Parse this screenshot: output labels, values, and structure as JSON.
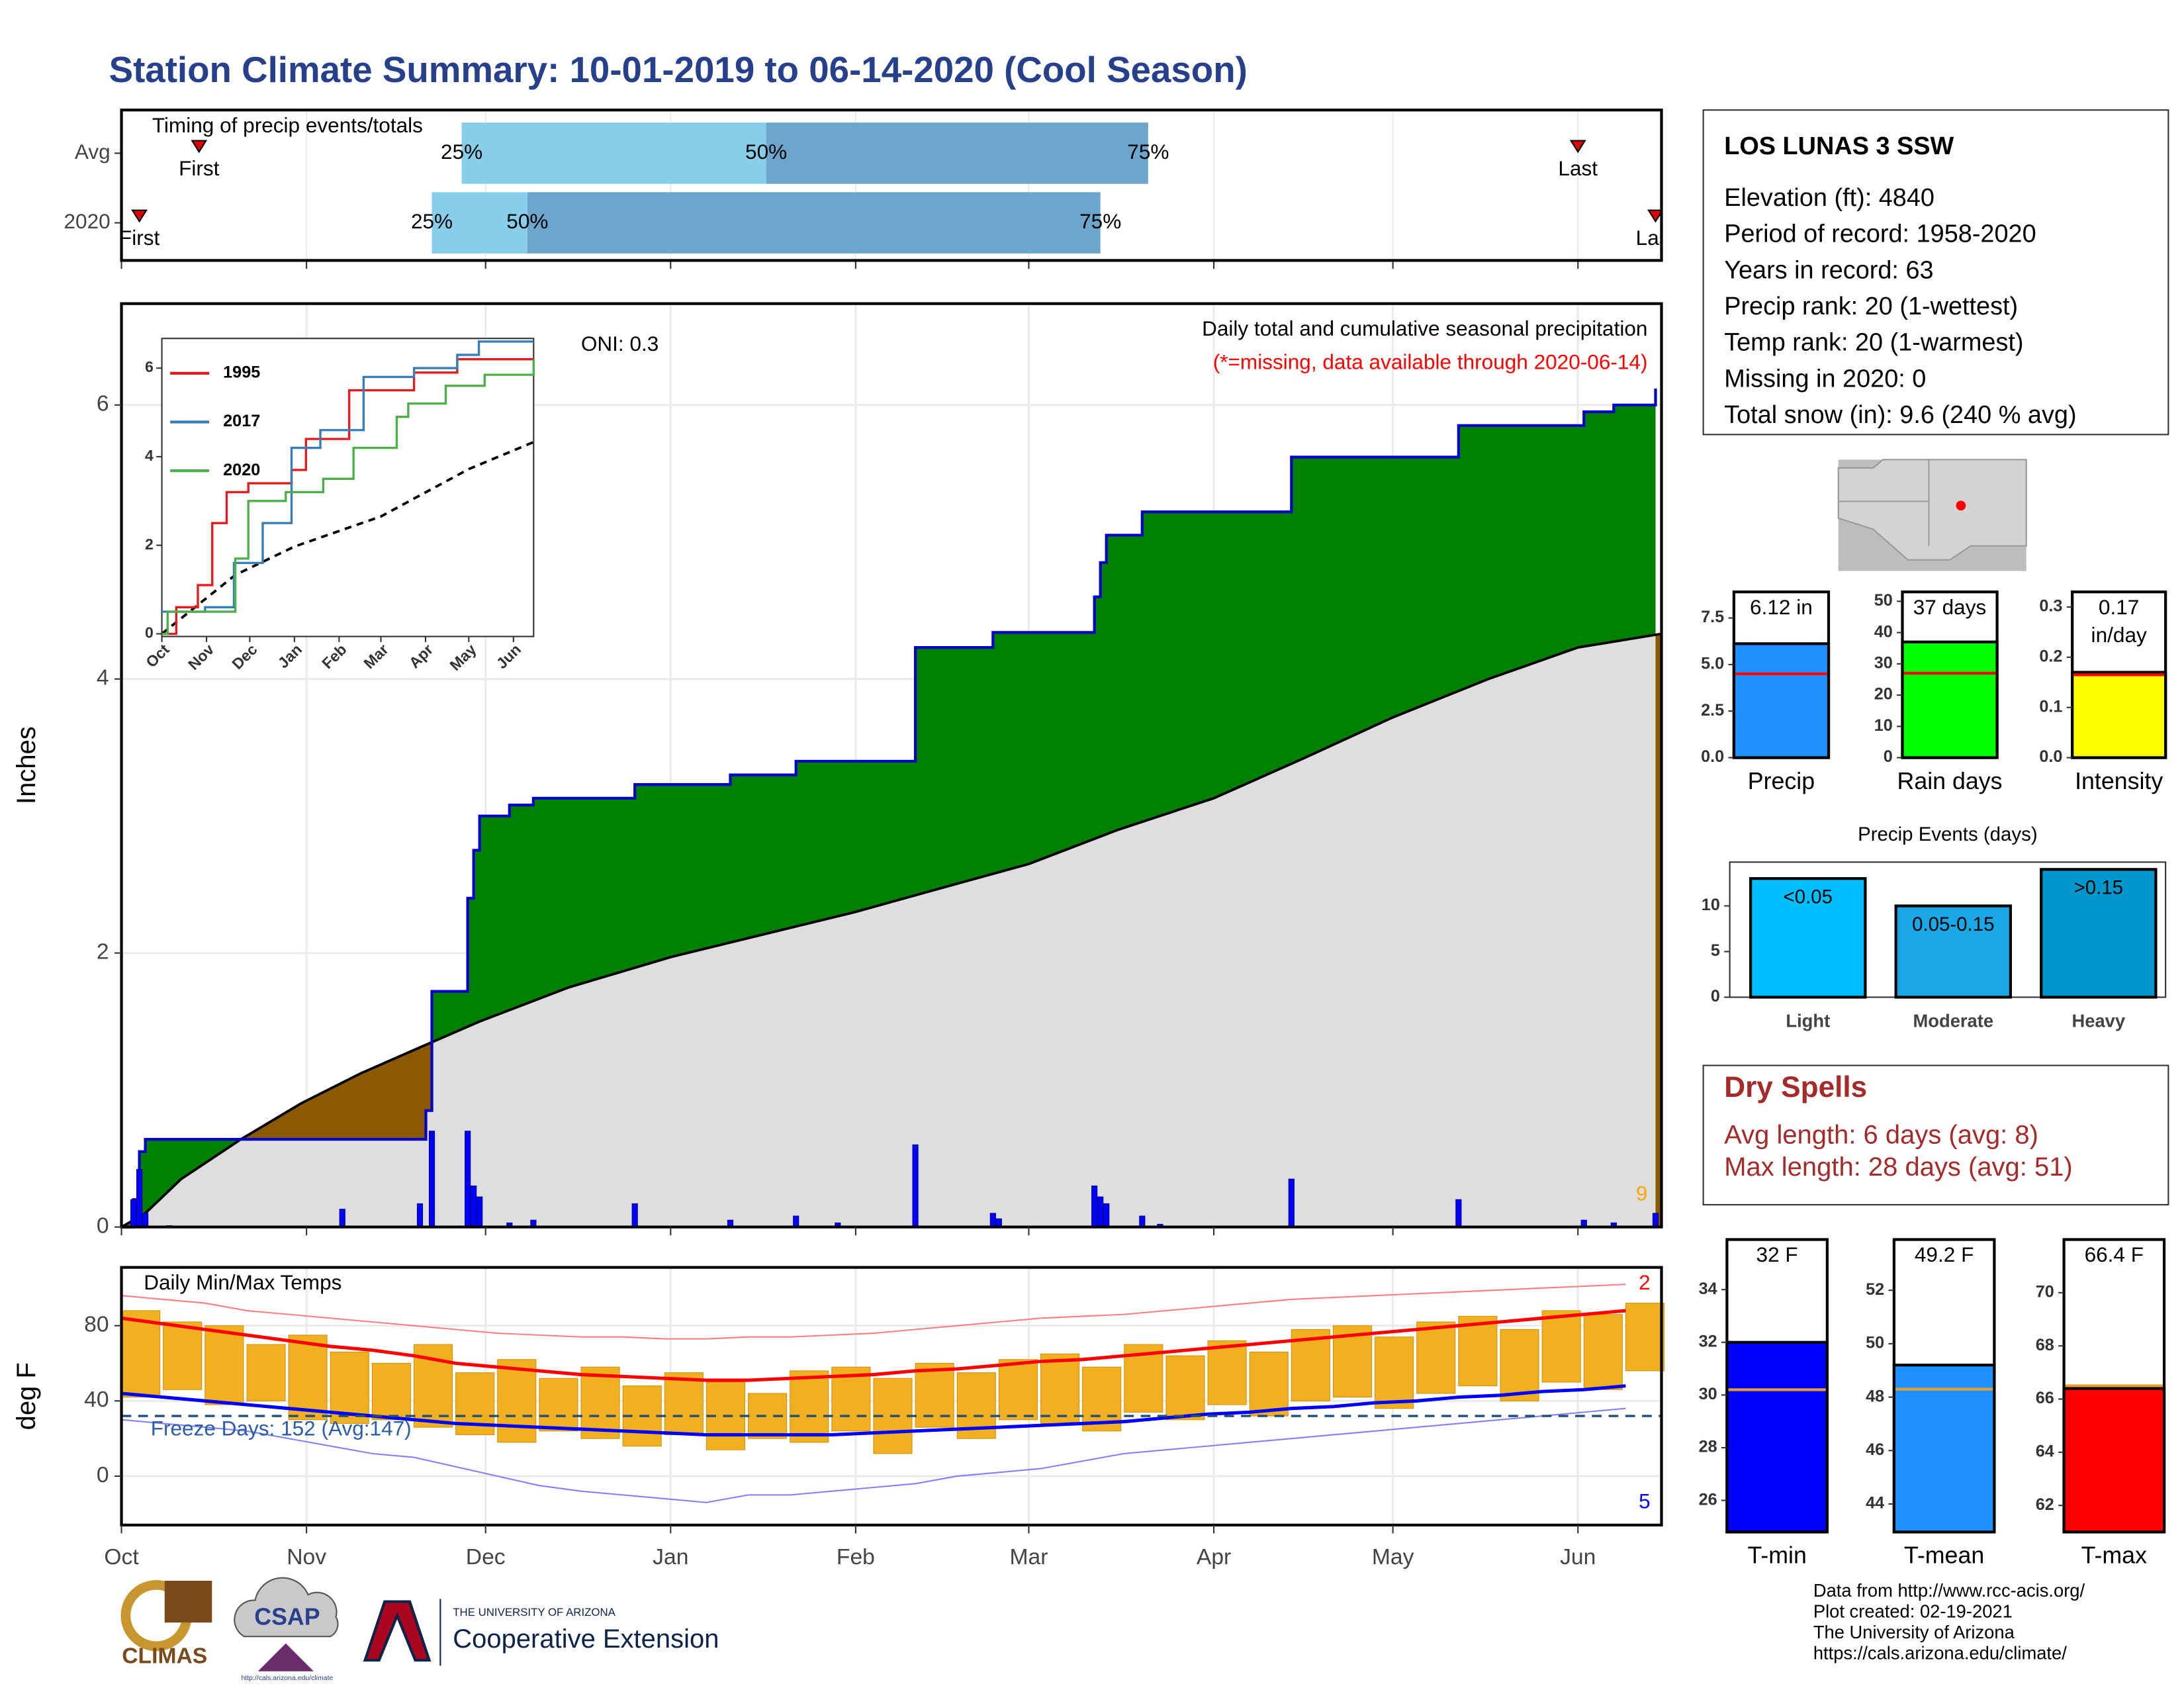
{
  "title": "Station Climate Summary: 10-01-2019 to 06-14-2020 (Cool Season)",
  "station": {
    "name": "LOS LUNAS 3 SSW",
    "lines": [
      "Elevation (ft): 4840",
      "Period of record: 1958-2020",
      "Years in record: 63",
      "Precip rank: 20 (1-wettest)",
      "Temp rank: 20 (1-warmest)",
      "Missing in 2020: 0",
      "Total snow (in): 9.6 (240 % avg)"
    ]
  },
  "dry_spells": {
    "title": "Dry Spells",
    "lines": [
      "Avg length: 6 days (avg: 8)",
      "Max length: 28 days (avg: 51)"
    ]
  },
  "footer": [
    "Data from http://www.rcc-acis.org/",
    "Plot created: 02-19-2021",
    "The University of Arizona",
    "https://cals.arizona.edu/climate/"
  ],
  "logos": {
    "climas": "CLIMAS",
    "csap": "CSAP",
    "csap_url": "http://cals.arizona.edu/climate",
    "university": "THE UNIVERSITY OF ARIZONA",
    "extension": "Cooperative Extension"
  },
  "chart_data": [
    {
      "type": "timing",
      "title": "Timing of precip events/totals",
      "labels": [
        "First",
        "25%",
        "50%",
        "75%",
        "Last"
      ],
      "series": [
        {
          "name": "Avg",
          "values": [
            13,
            57,
            108,
            172,
            244
          ]
        },
        {
          "name": "2020",
          "values": [
            3,
            52,
            68,
            164,
            257
          ]
        }
      ],
      "colors": [
        "#87ceeb",
        "#6ca6cd"
      ],
      "xlim": [
        0,
        258
      ],
      "xticks": [
        0,
        31,
        61,
        92,
        123,
        152,
        183,
        213,
        244
      ],
      "grid": true
    },
    {
      "type": "area",
      "title": "Daily total and cumulative seasonal precipitation",
      "subtitle": "(*=missing, data available through 2020-06-14)",
      "annotations": [
        "ONI: 0.3",
        "9"
      ],
      "ylabel": "Inches",
      "xlim": [
        0,
        258
      ],
      "xticks": [
        0,
        31,
        61,
        92,
        123,
        152,
        183,
        213,
        244
      ],
      "ylim": [
        0,
        6.74
      ],
      "yticks": [
        0,
        2,
        4,
        6
      ],
      "grid": true,
      "cumulative": {
        "color": "#0000cd",
        "fill": "#008000",
        "x": [
          0,
          2,
          3,
          4,
          51,
          52,
          58,
          59,
          60,
          65,
          69,
          86,
          102,
          113,
          133,
          146,
          163,
          164,
          165,
          171,
          196,
          224,
          245,
          250,
          257
        ],
        "values": [
          0,
          0.2,
          0.55,
          0.64,
          0.85,
          1.72,
          2.4,
          2.75,
          3.0,
          3.08,
          3.13,
          3.23,
          3.3,
          3.4,
          4.23,
          4.34,
          4.6,
          4.85,
          5.05,
          5.22,
          5.62,
          5.85,
          5.95,
          6.0,
          6.12
        ]
      },
      "average": {
        "color": "#000000",
        "fill": "#dedede",
        "deficit_fill": "#8b5a00",
        "x": [
          0,
          4,
          10,
          20,
          30,
          40,
          51,
          60,
          75,
          92,
          107,
          123,
          137,
          152,
          167,
          183,
          198,
          213,
          229,
          244,
          258
        ],
        "values": [
          0,
          0.1,
          0.35,
          0.64,
          0.9,
          1.12,
          1.33,
          1.5,
          1.75,
          1.97,
          2.13,
          2.3,
          2.47,
          2.65,
          2.9,
          3.13,
          3.42,
          3.72,
          4.0,
          4.23,
          4.33
        ]
      },
      "daily": {
        "color": "#0000ff",
        "x": [
          2,
          3,
          4,
          8,
          37,
          50,
          52,
          58,
          59,
          60,
          65,
          69,
          86,
          102,
          113,
          120,
          133,
          146,
          147,
          163,
          164,
          165,
          171,
          174,
          196,
          224,
          245,
          250,
          257
        ],
        "values": [
          0.2,
          0.42,
          0.1,
          0.01,
          0.13,
          0.17,
          0.7,
          0.7,
          0.3,
          0.22,
          0.03,
          0.05,
          0.17,
          0.05,
          0.08,
          0.03,
          0.6,
          0.1,
          0.06,
          0.3,
          0.22,
          0.17,
          0.08,
          0.02,
          0.35,
          0.2,
          0.05,
          0.03,
          0.1
        ]
      }
    },
    {
      "type": "line",
      "legend": "top-left",
      "xlim": [
        0,
        258
      ],
      "ylim": [
        -0.06,
        6.67
      ],
      "yticks": [
        0,
        2,
        4,
        6
      ],
      "xticks": [
        {
          "value": 0,
          "label": "Oct"
        },
        {
          "value": 31,
          "label": "Nov"
        },
        {
          "value": 61,
          "label": "Dec"
        },
        {
          "value": 92,
          "label": "Jan"
        },
        {
          "value": 123,
          "label": "Feb"
        },
        {
          "value": 152,
          "label": "Mar"
        },
        {
          "value": 183,
          "label": "Apr"
        },
        {
          "value": 213,
          "label": "May"
        },
        {
          "value": 244,
          "label": "Jun"
        }
      ],
      "series": [
        {
          "name": "1995",
          "color": "#e41a1c",
          "x": [
            0,
            10,
            25,
            35,
            45,
            60,
            90,
            100,
            130,
            175,
            205,
            258
          ],
          "values": [
            0,
            0.6,
            1.1,
            2.5,
            3.2,
            3.4,
            3.7,
            4.4,
            5.5,
            5.9,
            6.2,
            6.2
          ]
        },
        {
          "name": "2017",
          "color": "#377eb8",
          "x": [
            0,
            30,
            50,
            70,
            90,
            110,
            140,
            175,
            205,
            220,
            258
          ],
          "values": [
            0.5,
            0.6,
            1.6,
            2.5,
            4.2,
            4.6,
            5.8,
            6.0,
            6.3,
            6.6,
            6.6
          ]
        },
        {
          "name": "2020",
          "color": "#4daf4a",
          "x": [
            0,
            4,
            51,
            60,
            86,
            112,
            133,
            163,
            171,
            197,
            224,
            258
          ],
          "values": [
            0,
            0.5,
            1.7,
            3.0,
            3.2,
            3.5,
            4.2,
            4.9,
            5.2,
            5.6,
            5.85,
            6.2
          ]
        }
      ],
      "average": {
        "color": "#000000",
        "x": [
          0,
          51,
          92,
          152,
          213,
          258
        ],
        "values": [
          0,
          1.33,
          1.97,
          2.65,
          3.72,
          4.33
        ]
      }
    },
    {
      "type": "temps",
      "title": "Daily Min/Max Temps",
      "annotations": [
        "Freeze Days: 152 (Avg:147)",
        "2",
        "5"
      ],
      "ylabel": "deg F",
      "xlim": [
        0,
        258
      ],
      "ylim": [
        -26,
        111
      ],
      "yticks": [
        0,
        40,
        80
      ],
      "freeze": 32,
      "grid": true,
      "xticks": [
        {
          "value": 0,
          "label": "Oct"
        },
        {
          "value": 31,
          "label": "Nov"
        },
        {
          "value": 61,
          "label": "Dec"
        },
        {
          "value": 92,
          "label": "Jan"
        },
        {
          "value": 123,
          "label": "Feb"
        },
        {
          "value": 152,
          "label": "Mar"
        },
        {
          "value": 183,
          "label": "Apr"
        },
        {
          "value": 213,
          "label": "May"
        },
        {
          "value": 244,
          "label": "Jun"
        }
      ],
      "x": [
        0,
        7,
        14,
        21,
        28,
        35,
        42,
        49,
        56,
        63,
        70,
        77,
        84,
        91,
        98,
        105,
        112,
        119,
        126,
        133,
        140,
        147,
        154,
        161,
        168,
        175,
        182,
        189,
        196,
        203,
        210,
        217,
        224,
        231,
        238,
        245,
        252
      ],
      "record_max": {
        "color": "#ff7f7f",
        "values": [
          96,
          94,
          92,
          88,
          86,
          84,
          82,
          80,
          78,
          76,
          75,
          74,
          74,
          73,
          73,
          74,
          74,
          75,
          76,
          78,
          80,
          82,
          84,
          85,
          86,
          88,
          90,
          92,
          94,
          95,
          96,
          97,
          98,
          99,
          100,
          101,
          102
        ]
      },
      "record_min": {
        "color": "#8080ff",
        "values": [
          30,
          28,
          26,
          24,
          20,
          16,
          12,
          10,
          5,
          0,
          -5,
          -8,
          -10,
          -12,
          -14,
          -10,
          -10,
          -8,
          -6,
          -4,
          0,
          2,
          4,
          8,
          12,
          14,
          16,
          18,
          20,
          22,
          24,
          26,
          28,
          30,
          32,
          34,
          36
        ]
      },
      "obs_max": {
        "color": "#f0b020",
        "values": [
          88,
          82,
          80,
          70,
          75,
          66,
          60,
          70,
          55,
          62,
          52,
          58,
          48,
          55,
          50,
          44,
          56,
          58,
          52,
          60,
          55,
          62,
          65,
          58,
          70,
          64,
          72,
          66,
          78,
          80,
          74,
          82,
          85,
          78,
          88,
          86,
          92
        ]
      },
      "obs_min": {
        "color": "#f0b020",
        "values": [
          42,
          46,
          38,
          40,
          30,
          28,
          30,
          26,
          22,
          18,
          24,
          20,
          16,
          22,
          14,
          20,
          18,
          24,
          12,
          26,
          20,
          30,
          28,
          24,
          34,
          30,
          38,
          32,
          40,
          42,
          36,
          44,
          48,
          40,
          50,
          46,
          56
        ]
      },
      "avg_max": {
        "color": "#ff0000",
        "values": [
          84,
          81,
          78,
          75,
          72,
          69,
          67,
          64,
          60,
          58,
          56,
          54,
          53,
          52,
          51,
          51,
          52,
          53,
          54,
          56,
          57,
          59,
          61,
          62,
          64,
          66,
          68,
          70,
          72,
          74,
          76,
          78,
          80,
          82,
          84,
          86,
          88
        ]
      },
      "avg_min": {
        "color": "#0000ff",
        "values": [
          44,
          42,
          40,
          38,
          36,
          34,
          32,
          30,
          28,
          27,
          26,
          25,
          24,
          23,
          22,
          22,
          22,
          22,
          23,
          24,
          25,
          26,
          27,
          28,
          29,
          31,
          33,
          34,
          36,
          37,
          39,
          40,
          42,
          43,
          45,
          46,
          48
        ]
      }
    },
    {
      "type": "bar",
      "categories": [
        "Precip"
      ],
      "values": [
        6.12
      ],
      "value_labels": [
        "6.12 in"
      ],
      "average": 4.5,
      "color": "#1e90ff",
      "average_color": "#ff0000",
      "ylim": [
        0,
        8.9
      ],
      "yticks": [
        {
          "value": 0,
          "label": "0.0"
        },
        2.5,
        {
          "value": 5,
          "label": "5.0"
        },
        7.5
      ]
    },
    {
      "type": "bar",
      "categories": [
        "Rain days"
      ],
      "values": [
        37
      ],
      "value_labels": [
        "37 days"
      ],
      "average": 27,
      "color": "#00ff00",
      "average_color": "#ff0000",
      "ylim": [
        0,
        53
      ],
      "yticks": [
        0,
        10,
        20,
        30,
        40,
        50
      ]
    },
    {
      "type": "bar",
      "categories": [
        "Intensity"
      ],
      "values": [
        0.17
      ],
      "value_labels": [
        "0.17 in/day"
      ],
      "average": 0.165,
      "color": "#ffff00",
      "average_color": "#ff0000",
      "ylim": [
        0,
        0.33
      ],
      "yticks": [
        {
          "value": 0,
          "label": "0.0"
        },
        0.1,
        0.2,
        0.3
      ]
    },
    {
      "type": "bar",
      "title": "Precip Events (days)",
      "categories": [
        "Light",
        "Moderate",
        "Heavy"
      ],
      "values": [
        13,
        10,
        14
      ],
      "value_labels": [
        "<0.05",
        "0.05-0.15",
        ">0.15"
      ],
      "colors": [
        "#00bfff",
        "#1aa7e8",
        "#0098cc"
      ],
      "ylim": [
        0,
        14.8
      ],
      "yticks": [
        0,
        5,
        10
      ]
    },
    {
      "type": "bar",
      "categories": [
        "T-min"
      ],
      "values": [
        32
      ],
      "value_labels": [
        "32 F"
      ],
      "average": 30.2,
      "color": "#0000ff",
      "average_color": "#e0a030",
      "ylim": [
        24.8,
        35.9
      ],
      "yticks": [
        26,
        28,
        30,
        32,
        34
      ]
    },
    {
      "type": "bar",
      "categories": [
        "T-mean"
      ],
      "values": [
        49.2
      ],
      "value_labels": [
        "49.2 F"
      ],
      "average": 48.3,
      "color": "#1e90ff",
      "average_color": "#e0a030",
      "ylim": [
        42.95,
        53.9
      ],
      "yticks": [
        44,
        46,
        48,
        50,
        52
      ]
    },
    {
      "type": "bar",
      "categories": [
        "T-max"
      ],
      "values": [
        66.4
      ],
      "value_labels": [
        "66.4 F"
      ],
      "average": 66.5,
      "color": "#ff0000",
      "average_color": "#e0a030",
      "ylim": [
        61,
        72
      ],
      "yticks": [
        62,
        64,
        66,
        68,
        70
      ]
    }
  ]
}
